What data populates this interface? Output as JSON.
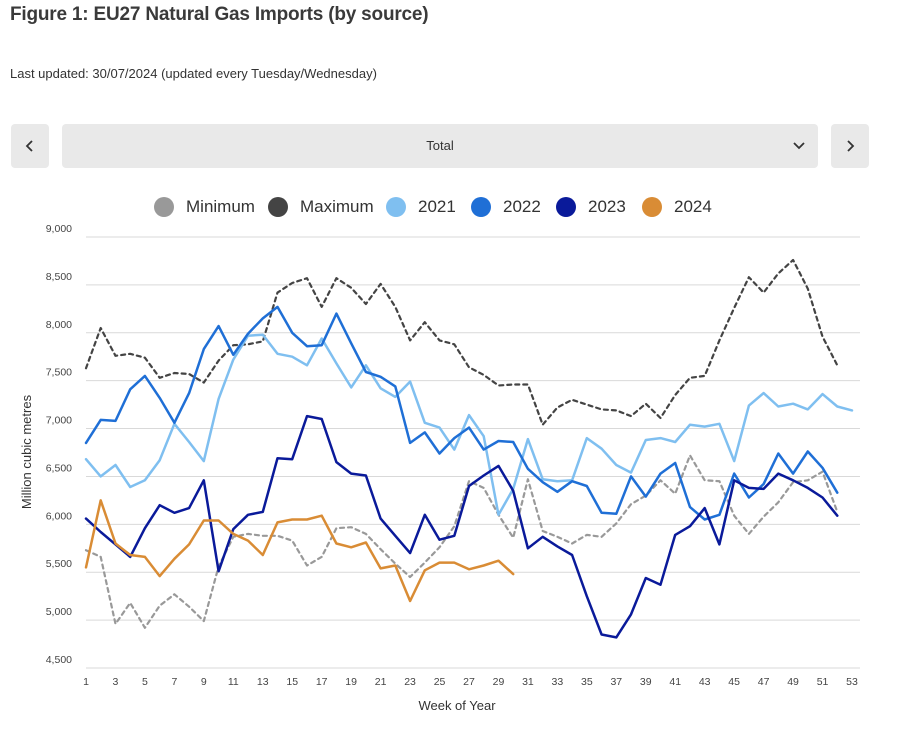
{
  "header": {
    "title": "Figure 1: EU27 Natural Gas Imports (by source)",
    "updated": "Last updated: 30/07/2024 (updated every Tuesday/Wednesday)"
  },
  "controls": {
    "prev_icon": "chevron-left-icon",
    "next_icon": "chevron-right-icon",
    "dropdown_icon": "chevron-down-icon",
    "selected": "Total"
  },
  "chart_data": {
    "type": "line",
    "xlabel": "Week of Year",
    "ylabel": "Million cubic metres",
    "xlim": [
      1,
      53
    ],
    "ylim": [
      4500,
      9000
    ],
    "x_ticks": [
      1,
      3,
      5,
      7,
      9,
      11,
      13,
      15,
      17,
      19,
      21,
      23,
      25,
      27,
      29,
      31,
      33,
      35,
      37,
      39,
      41,
      43,
      45,
      47,
      49,
      51,
      53
    ],
    "y_ticks": [
      4500,
      5000,
      5500,
      6000,
      6500,
      7000,
      7500,
      8000,
      8500,
      9000
    ],
    "y_tick_labels": [
      "4,500",
      "5,000",
      "5,500",
      "6,000",
      "6,500",
      "7,000",
      "7,500",
      "8,000",
      "8,500",
      "9,000"
    ],
    "grid": "horizontal",
    "legend": "top",
    "series": [
      {
        "name": "Minimum",
        "color": "#999999",
        "style": "dashed",
        "values": [
          5730,
          5660,
          4960,
          5180,
          4920,
          5150,
          5270,
          5140,
          4990,
          5560,
          5870,
          5900,
          5880,
          5880,
          5830,
          5570,
          5660,
          5960,
          5970,
          5900,
          5740,
          5590,
          5450,
          5600,
          5760,
          5980,
          6450,
          6380,
          6100,
          5860,
          6470,
          5930,
          5870,
          5800,
          5890,
          5870,
          6010,
          6210,
          6300,
          6460,
          6320,
          6720,
          6460,
          6450,
          6090,
          5900,
          6080,
          6230,
          6440,
          6460,
          6550,
          6130
        ]
      },
      {
        "name": "Maximum",
        "color": "#444444",
        "style": "dashed",
        "values": [
          7630,
          8050,
          7760,
          7780,
          7740,
          7530,
          7580,
          7570,
          7480,
          7710,
          7870,
          7880,
          7910,
          8420,
          8520,
          8570,
          8270,
          8570,
          8470,
          8300,
          8510,
          8270,
          7920,
          8110,
          7920,
          7880,
          7640,
          7560,
          7450,
          7460,
          7460,
          7040,
          7220,
          7300,
          7250,
          7200,
          7190,
          7130,
          7260,
          7110,
          7350,
          7530,
          7550,
          7920,
          8260,
          8580,
          8420,
          8620,
          8760,
          8460,
          7960,
          7660
        ]
      },
      {
        "name": "2021",
        "color": "#7fbff0",
        "style": "solid",
        "values": [
          6680,
          6500,
          6620,
          6390,
          6460,
          6670,
          7050,
          6860,
          6660,
          7310,
          7720,
          7970,
          7980,
          7780,
          7750,
          7660,
          7940,
          7680,
          7430,
          7660,
          7420,
          7330,
          7490,
          7060,
          7010,
          6780,
          7140,
          6920,
          6100,
          6370,
          6890,
          6470,
          6450,
          6460,
          6900,
          6790,
          6620,
          6540,
          6880,
          6900,
          6860,
          7040,
          7020,
          7050,
          6660,
          7240,
          7370,
          7230,
          7260,
          7200,
          7360,
          7230,
          7190
        ]
      },
      {
        "name": "2022",
        "color": "#1f6fd6",
        "style": "solid",
        "values": [
          6850,
          7090,
          7080,
          7410,
          7550,
          7320,
          7060,
          7370,
          7830,
          8070,
          7770,
          7990,
          8150,
          8270,
          8000,
          7860,
          7870,
          8200,
          7890,
          7590,
          7540,
          7440,
          6850,
          6960,
          6740,
          6900,
          7010,
          6780,
          6870,
          6860,
          6580,
          6440,
          6340,
          6450,
          6400,
          6120,
          6110,
          6500,
          6290,
          6530,
          6640,
          6180,
          6050,
          6100,
          6530,
          6280,
          6420,
          6740,
          6530,
          6760,
          6590,
          6330
        ]
      },
      {
        "name": "2023",
        "color": "#0a1a9a",
        "style": "solid",
        "values": [
          6060,
          5920,
          5790,
          5660,
          5960,
          6200,
          6120,
          6170,
          6460,
          5510,
          5950,
          6100,
          6130,
          6690,
          6680,
          7130,
          7100,
          6650,
          6530,
          6510,
          6060,
          5880,
          5700,
          6100,
          5840,
          5880,
          6400,
          6510,
          6610,
          6350,
          5750,
          5870,
          5770,
          5680,
          5250,
          4850,
          4820,
          5060,
          5440,
          5370,
          5890,
          5980,
          6170,
          5790,
          6460,
          6380,
          6370,
          6530,
          6460,
          6380,
          6280,
          6090
        ]
      },
      {
        "name": "2024",
        "color": "#d98c35",
        "style": "solid",
        "values": [
          5550,
          6250,
          5800,
          5680,
          5660,
          5460,
          5640,
          5790,
          6040,
          6040,
          5900,
          5830,
          5680,
          6020,
          6050,
          6050,
          6090,
          5800,
          5760,
          5810,
          5540,
          5570,
          5200,
          5520,
          5600,
          5600,
          5530,
          5570,
          5620,
          5480
        ]
      }
    ]
  }
}
